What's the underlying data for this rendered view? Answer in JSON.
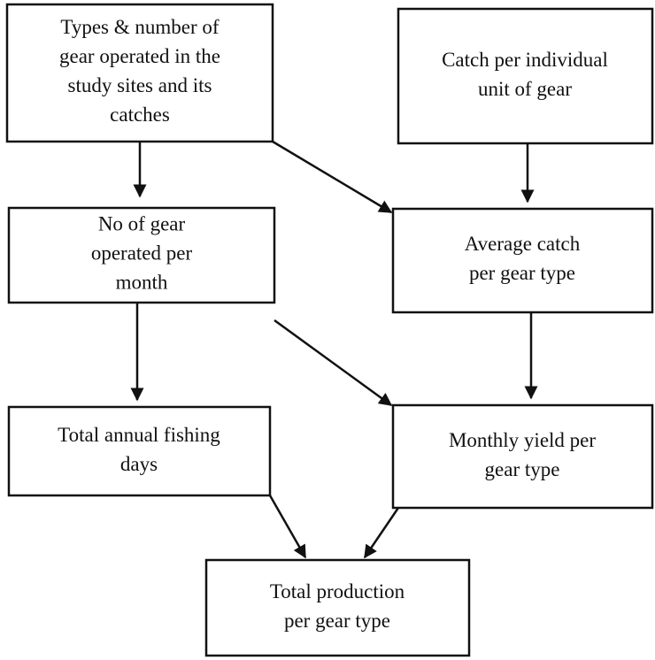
{
  "nodes": [
    {
      "label": [
        "Types & number of",
        "gear operated in the",
        "study sites and its",
        "catches"
      ]
    },
    {
      "label": [
        "Catch per individual",
        "unit of gear"
      ]
    },
    {
      "label": [
        "No of gear",
        "operated per",
        "month"
      ]
    },
    {
      "label": [
        "Average catch",
        "per gear type"
      ]
    },
    {
      "label": [
        "Total annual fishing",
        "days"
      ]
    },
    {
      "label": [
        "Monthly yield per",
        "gear type"
      ]
    },
    {
      "label": [
        "Total production",
        "per gear type"
      ]
    }
  ]
}
